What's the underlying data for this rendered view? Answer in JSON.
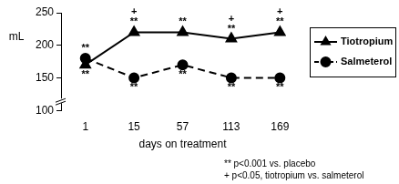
{
  "chart_data": {
    "type": "line",
    "y_label": "mL",
    "x_label": "days on treatment",
    "categories": [
      "1",
      "15",
      "57",
      "113",
      "169"
    ],
    "series": [
      {
        "name": "Tiotropium",
        "color": "#000000",
        "marker": "triangle",
        "line_style": "solid",
        "values": [
          170,
          220,
          220,
          210,
          220
        ]
      },
      {
        "name": "Salmeterol",
        "color": "#000000",
        "marker": "circle",
        "line_style": "dashed",
        "values": [
          180,
          150,
          170,
          150,
          150
        ]
      }
    ],
    "ylim": [
      100,
      250
    ],
    "yticks": [
      100,
      150,
      200,
      250
    ],
    "grid": false,
    "legend": "right",
    "annotations": [
      {
        "text": "**",
        "x": "1",
        "series": "Salmeterol"
      },
      {
        "text": "**",
        "x": "1",
        "series": "Tiotropium"
      },
      {
        "text": "**",
        "x": "15",
        "series": "Tiotropium"
      },
      {
        "text": "+",
        "x": "15",
        "series": "Tiotropium"
      },
      {
        "text": "**",
        "x": "57",
        "series": "Tiotropium"
      },
      {
        "text": "**",
        "x": "113",
        "series": "Tiotropium"
      },
      {
        "text": "+",
        "x": "113",
        "series": "Tiotropium"
      },
      {
        "text": "**",
        "x": "169",
        "series": "Tiotropium"
      },
      {
        "text": "+",
        "x": "169",
        "series": "Tiotropium"
      },
      {
        "text": "**",
        "x": "15",
        "series": "Salmeterol"
      },
      {
        "text": "**",
        "x": "57",
        "series": "Salmeterol"
      },
      {
        "text": "**",
        "x": "113",
        "series": "Salmeterol"
      },
      {
        "text": "**",
        "x": "169",
        "series": "Salmeterol"
      }
    ],
    "notes": [
      "** p<0.001 vs. placebo",
      "+ p<0.05, tiotropium vs. salmeterol"
    ]
  }
}
